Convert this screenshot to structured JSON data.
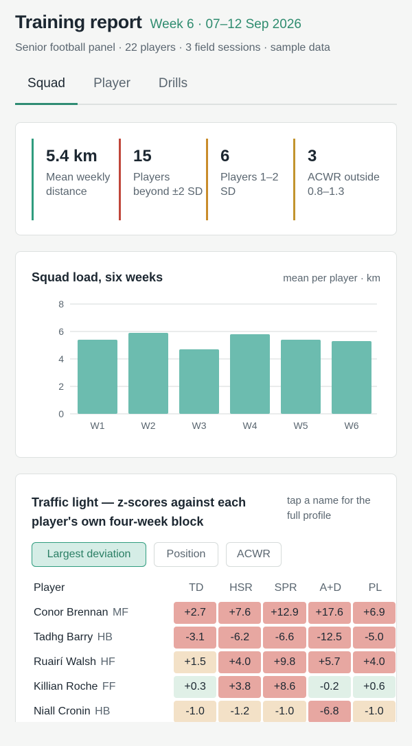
{
  "header": {
    "title": "Training report",
    "week": "Week 6 · 07–12 Sep 2026",
    "subtitle": "Senior football panel · 22 players · 3 field sessions · sample data"
  },
  "tabs": [
    {
      "label": "Squad",
      "active": true
    },
    {
      "label": "Player",
      "active": false
    },
    {
      "label": "Drills",
      "active": false
    }
  ],
  "kpis": [
    {
      "value": "5.4 km",
      "label": "Mean weekly distance",
      "color": "#2f9c7e"
    },
    {
      "value": "15",
      "label": "Players beyond ±2 SD",
      "color": "#c0463a"
    },
    {
      "value": "6",
      "label": "Players 1–2 SD",
      "color": "#c98c2a"
    },
    {
      "value": "3",
      "label": "ACWR outside 0.8–1.3",
      "color": "#c2942e"
    }
  ],
  "chart_data": {
    "type": "bar",
    "title": "Squad load, six weeks",
    "unit_note": "mean per player · km",
    "categories": [
      "W1",
      "W2",
      "W3",
      "W4",
      "W5",
      "W6"
    ],
    "values": [
      5.4,
      5.9,
      4.7,
      5.8,
      5.4,
      5.3
    ],
    "ylim": [
      0,
      8
    ],
    "yticks": [
      0,
      2,
      4,
      6,
      8
    ],
    "grid": true,
    "bar_color": "#6cbcaf"
  },
  "traffic": {
    "title": "Traffic light — z-scores against each player's own four-week block",
    "hint": "tap a name for the full profile",
    "chips": [
      {
        "label": "Largest deviation",
        "active": true
      },
      {
        "label": "Position",
        "active": false
      },
      {
        "label": "ACWR",
        "active": false
      }
    ],
    "columns": [
      "Player",
      "TD",
      "HSR",
      "SPR",
      "A+D",
      "PL"
    ],
    "rows": [
      {
        "name": "Conor Brennan",
        "pos": "MF",
        "values": [
          "+2.7",
          "+7.6",
          "+12.9",
          "+17.6",
          "+6.9"
        ],
        "levels": [
          "red",
          "red",
          "red",
          "red",
          "red"
        ]
      },
      {
        "name": "Tadhg Barry",
        "pos": "HB",
        "values": [
          "-3.1",
          "-6.2",
          "-6.6",
          "-12.5",
          "-5.0"
        ],
        "levels": [
          "red",
          "red",
          "red",
          "red",
          "red"
        ]
      },
      {
        "name": "Ruairí Walsh",
        "pos": "HF",
        "values": [
          "+1.5",
          "+4.0",
          "+9.8",
          "+5.7",
          "+4.0"
        ],
        "levels": [
          "amber",
          "red",
          "red",
          "red",
          "red"
        ]
      },
      {
        "name": "Killian Roche",
        "pos": "FF",
        "values": [
          "+0.3",
          "+3.8",
          "+8.6",
          "-0.2",
          "+0.6"
        ],
        "levels": [
          "green",
          "red",
          "red",
          "green",
          "green"
        ]
      },
      {
        "name": "Niall Cronin",
        "pos": "HB",
        "values": [
          "-1.0",
          "-1.2",
          "-1.0",
          "-6.8",
          "-1.0"
        ],
        "levels": [
          "amber",
          "amber",
          "amber",
          "red",
          "amber"
        ]
      }
    ]
  }
}
